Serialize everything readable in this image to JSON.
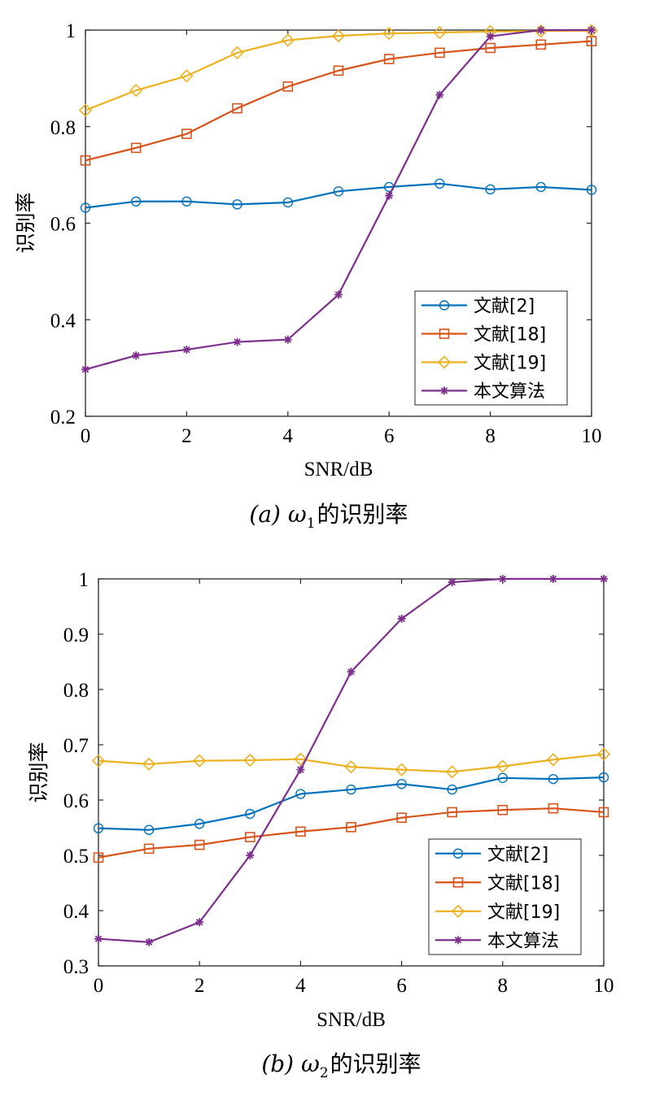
{
  "chart_data": [
    {
      "type": "line",
      "x": [
        0,
        1,
        2,
        3,
        4,
        5,
        6,
        7,
        8,
        9,
        10
      ],
      "xlabel": "SNR/dB",
      "ylabel": "识别率",
      "xlim": [
        0,
        10
      ],
      "ylim": [
        0.2,
        1.0
      ],
      "xticks": [
        "0",
        "2",
        "4",
        "6",
        "8",
        "10"
      ],
      "yticks": [
        "0.2",
        "0.4",
        "0.6",
        "0.8",
        "1"
      ],
      "grid": false,
      "legend_position": "bottom-right",
      "caption": {
        "prefix": "(a)",
        "symbol": "ω",
        "subscript": "1",
        "suffix": "的识别率"
      },
      "series": [
        {
          "name": "文献[2]",
          "marker": "circle",
          "color": "#0072BD",
          "values": [
            0.632,
            0.645,
            0.645,
            0.639,
            0.643,
            0.666,
            0.675,
            0.682,
            0.67,
            0.675,
            0.669
          ]
        },
        {
          "name": "文献[18]",
          "marker": "square",
          "color": "#D95319",
          "values": [
            0.73,
            0.756,
            0.785,
            0.838,
            0.883,
            0.916,
            0.94,
            0.953,
            0.963,
            0.97,
            0.977
          ]
        },
        {
          "name": "文献[19]",
          "marker": "diamond",
          "color": "#EDB120",
          "values": [
            0.834,
            0.875,
            0.905,
            0.953,
            0.979,
            0.988,
            0.993,
            0.995,
            0.997,
            0.998,
            0.999
          ]
        },
        {
          "name": "本文算法",
          "marker": "asterisk",
          "color": "#7E2F8E",
          "values": [
            0.297,
            0.326,
            0.338,
            0.354,
            0.359,
            0.452,
            0.657,
            0.866,
            0.987,
            1.0,
            1.0
          ]
        }
      ]
    },
    {
      "type": "line",
      "x": [
        0,
        1,
        2,
        3,
        4,
        5,
        6,
        7,
        8,
        9,
        10
      ],
      "xlabel": "SNR/dB",
      "ylabel": "识别率",
      "xlim": [
        0,
        10
      ],
      "ylim": [
        0.3,
        1.0
      ],
      "xticks": [
        "0",
        "2",
        "4",
        "6",
        "8",
        "10"
      ],
      "yticks": [
        "0.3",
        "0.4",
        "0.5",
        "0.6",
        "0.7",
        "0.8",
        "0.9",
        "1"
      ],
      "grid": false,
      "legend_position": "bottom-right",
      "caption": {
        "prefix": "(b)",
        "symbol": "ω",
        "subscript": "2",
        "suffix": "的识别率"
      },
      "series": [
        {
          "name": "文献[2]",
          "marker": "circle",
          "color": "#0072BD",
          "values": [
            0.549,
            0.546,
            0.557,
            0.575,
            0.611,
            0.619,
            0.629,
            0.619,
            0.64,
            0.638,
            0.641
          ]
        },
        {
          "name": "文献[18]",
          "marker": "square",
          "color": "#D95319",
          "values": [
            0.496,
            0.512,
            0.519,
            0.533,
            0.543,
            0.551,
            0.568,
            0.578,
            0.582,
            0.585,
            0.578
          ]
        },
        {
          "name": "文献[19]",
          "marker": "diamond",
          "color": "#EDB120",
          "values": [
            0.671,
            0.665,
            0.671,
            0.672,
            0.674,
            0.66,
            0.655,
            0.651,
            0.661,
            0.673,
            0.683
          ]
        },
        {
          "name": "本文算法",
          "marker": "asterisk",
          "color": "#7E2F8E",
          "values": [
            0.349,
            0.343,
            0.379,
            0.5,
            0.655,
            0.832,
            0.928,
            0.994,
            1.0,
            1.0,
            1.0
          ]
        }
      ]
    }
  ]
}
